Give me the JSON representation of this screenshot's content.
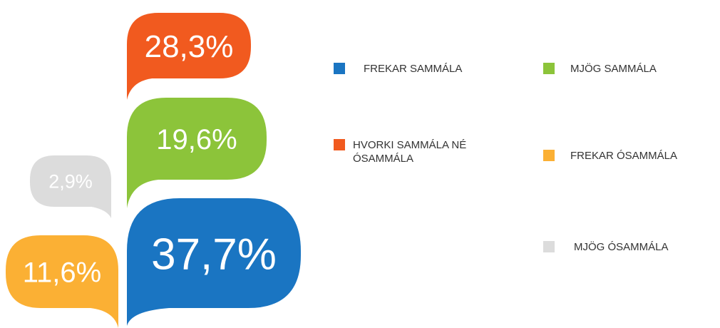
{
  "chart_data": {
    "type": "bubble",
    "categories": [
      "FREKAR SAMMÁLA",
      "MJÖG SAMMÁLA",
      "HVORKI SAMMÁLA NÉ ÓSAMMÁLA",
      "FREKAR ÓSAMMÁLA",
      "MJÖG ÓSAMMÁLA"
    ],
    "values": [
      37.7,
      19.6,
      28.3,
      11.6,
      2.9
    ],
    "value_labels": [
      "37,7%",
      "19,6%",
      "28,3%",
      "11,6%",
      "2,9%"
    ],
    "colors": [
      "#1a75c2",
      "#8cc43a",
      "#f15a1f",
      "#fbb034",
      "#dcdcdc"
    ]
  }
}
